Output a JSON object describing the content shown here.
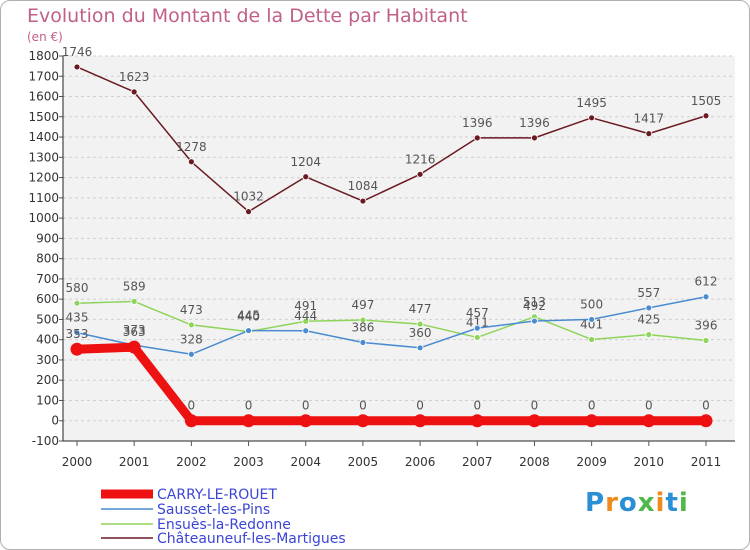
{
  "title": "Evolution du Montant de la Dette par Habitant",
  "subtitle": "(en €)",
  "logo": "Proxiti",
  "chart_data": {
    "type": "line",
    "title": "Evolution du Montant de la Dette par Habitant",
    "subtitle": "(en €)",
    "xlabel": "",
    "ylabel": "",
    "x": [
      "2000",
      "2001",
      "2002",
      "2003",
      "2004",
      "2005",
      "2006",
      "2007",
      "2008",
      "2009",
      "2010",
      "2011"
    ],
    "y_ticks": [
      -100,
      0,
      100,
      200,
      300,
      400,
      500,
      600,
      700,
      800,
      900,
      1000,
      1100,
      1200,
      1300,
      1400,
      1500,
      1600,
      1700,
      1800
    ],
    "ylim": [
      -100,
      1800
    ],
    "grid": "horizontal dashed",
    "legend_position": "bottom-left",
    "series": [
      {
        "name": "CARRY-LE-ROUET",
        "color": "#ee1111",
        "values": [
          353,
          363,
          0,
          0,
          0,
          0,
          0,
          0,
          0,
          0,
          0,
          0
        ]
      },
      {
        "name": "Sausset-les-Pins",
        "color": "#4a8ccf",
        "values": [
          435,
          373,
          328,
          445,
          444,
          386,
          360,
          457,
          492,
          500,
          557,
          612
        ]
      },
      {
        "name": "Ensuès-la-Redonne",
        "color": "#8fd45a",
        "values": [
          580,
          589,
          473,
          440,
          491,
          497,
          477,
          411,
          513,
          401,
          425,
          396
        ]
      },
      {
        "name": "Châteauneuf-les-Martigues",
        "color": "#6b1a22",
        "values": [
          1746,
          1623,
          1278,
          1032,
          1204,
          1084,
          1216,
          1396,
          1396,
          1495,
          1417,
          1505
        ]
      }
    ]
  }
}
